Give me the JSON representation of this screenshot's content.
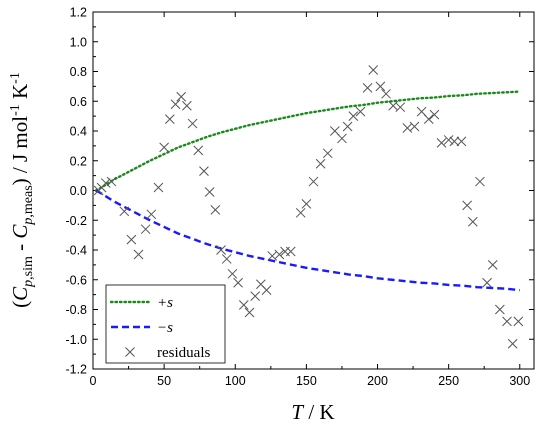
{
  "chart_data": {
    "type": "scatter",
    "xlabel": "T / K",
    "ylabel": "(Cp,sim - Cp,meas) / J mol-1 K-1",
    "xlim": [
      0,
      310
    ],
    "ylim": [
      -1.2,
      1.2
    ],
    "x_ticks": [
      "0",
      "50",
      "100",
      "150",
      "200",
      "250",
      "300"
    ],
    "y_ticks": [
      "1.2",
      "1.0",
      "0.8",
      "0.6",
      "0.4",
      "0.2",
      "0.0",
      "-0.2",
      "-0.4",
      "-0.6",
      "-0.8",
      "-1.0",
      "-1.2"
    ],
    "grid": false,
    "legend_position": "bottom-left",
    "series": [
      {
        "name": "+s",
        "style": "dotted",
        "color": "#1a8a1a",
        "x": [
          2,
          5,
          10,
          15,
          20,
          30,
          40,
          50,
          60,
          70,
          80,
          90,
          100,
          110,
          120,
          130,
          140,
          150,
          160,
          170,
          180,
          190,
          200,
          210,
          220,
          230,
          240,
          250,
          260,
          270,
          280,
          290,
          300
        ],
        "y": [
          0.0,
          0.015,
          0.045,
          0.075,
          0.1,
          0.15,
          0.2,
          0.245,
          0.29,
          0.325,
          0.36,
          0.39,
          0.415,
          0.44,
          0.46,
          0.48,
          0.5,
          0.52,
          0.535,
          0.55,
          0.565,
          0.575,
          0.59,
          0.6,
          0.61,
          0.62,
          0.625,
          0.635,
          0.64,
          0.65,
          0.655,
          0.66,
          0.665
        ]
      },
      {
        "name": "−s",
        "style": "dashed",
        "color": "#1a1aff",
        "x": [
          2,
          5,
          10,
          15,
          20,
          30,
          40,
          50,
          60,
          70,
          80,
          90,
          100,
          110,
          120,
          130,
          140,
          150,
          160,
          170,
          180,
          190,
          200,
          210,
          220,
          230,
          240,
          250,
          260,
          270,
          280,
          290,
          300
        ],
        "y": [
          0.0,
          -0.015,
          -0.045,
          -0.075,
          -0.1,
          -0.15,
          -0.2,
          -0.245,
          -0.29,
          -0.325,
          -0.36,
          -0.39,
          -0.415,
          -0.44,
          -0.46,
          -0.48,
          -0.5,
          -0.52,
          -0.535,
          -0.55,
          -0.565,
          -0.575,
          -0.59,
          -0.6,
          -0.61,
          -0.62,
          -0.625,
          -0.635,
          -0.64,
          -0.65,
          -0.655,
          -0.66,
          -0.67
        ]
      },
      {
        "name": "residuals",
        "style": "markers",
        "marker": "x",
        "color": "#555555",
        "x": [
          4,
          6,
          9,
          13,
          22,
          27,
          32,
          37,
          41,
          46,
          50,
          54,
          58,
          62,
          66,
          70,
          74,
          78,
          82,
          86,
          90,
          94,
          98,
          102,
          106,
          110,
          114,
          118,
          122,
          126,
          131,
          135,
          139,
          146,
          150,
          155,
          160,
          165,
          170,
          175,
          179,
          183,
          188,
          193,
          197,
          202,
          206,
          211,
          216,
          221,
          226,
          231,
          236,
          240,
          245,
          250,
          254,
          259,
          263,
          267,
          272,
          277,
          281,
          286,
          291,
          295,
          299
        ],
        "y": [
          0.0,
          0.02,
          0.05,
          0.06,
          -0.14,
          -0.33,
          -0.43,
          -0.26,
          -0.16,
          0.02,
          0.29,
          0.48,
          0.58,
          0.63,
          0.57,
          0.45,
          0.27,
          0.13,
          -0.01,
          -0.13,
          -0.4,
          -0.46,
          -0.56,
          -0.62,
          -0.77,
          -0.82,
          -0.71,
          -0.63,
          -0.67,
          -0.44,
          -0.43,
          -0.41,
          -0.41,
          -0.15,
          -0.09,
          0.06,
          0.18,
          0.25,
          0.4,
          0.35,
          0.43,
          0.5,
          0.53,
          0.69,
          0.81,
          0.7,
          0.65,
          0.57,
          0.56,
          0.42,
          0.43,
          0.53,
          0.48,
          0.51,
          0.32,
          0.34,
          0.33,
          0.33,
          -0.1,
          -0.21,
          0.06,
          -0.62,
          -0.5,
          -0.8,
          -0.88,
          -1.03,
          -0.88
        ]
      }
    ]
  }
}
